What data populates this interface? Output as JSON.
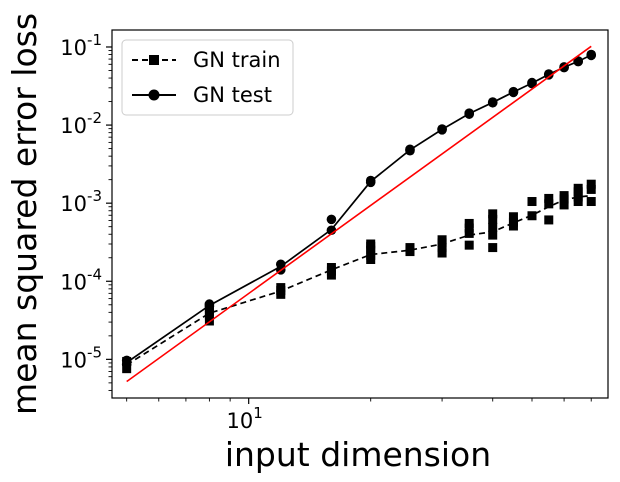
{
  "chart_data": {
    "type": "line",
    "xlabel": "input dimension",
    "ylabel": "mean squared error loss",
    "xscale": "log",
    "yscale": "log",
    "xlim": [
      4.6,
      77
    ],
    "ylim": [
      3.2e-06,
      0.165
    ],
    "grid": false,
    "legend_position": "top-left",
    "x_ticks": [
      {
        "value": 10,
        "label": "10^1"
      }
    ],
    "y_ticks": [
      {
        "value": 1e-05,
        "label": "10^-5"
      },
      {
        "value": 0.0001,
        "label": "10^-4"
      },
      {
        "value": 0.001,
        "label": "10^-3"
      },
      {
        "value": 0.01,
        "label": "10^-2"
      },
      {
        "value": 0.1,
        "label": "10^-1"
      }
    ],
    "series": [
      {
        "name": "GN train",
        "style": "dashed",
        "marker": "square",
        "color": "#000000",
        "x": [
          5,
          8,
          12,
          16,
          20,
          25,
          30,
          35,
          40,
          45,
          50,
          55,
          60,
          65,
          70
        ],
        "y": [
          8.5e-06,
          3.9e-05,
          7.5e-05,
          0.00014,
          0.00022,
          0.00025,
          0.0003,
          0.00039,
          0.00043,
          0.00056,
          0.0007,
          0.0009,
          0.0011,
          0.0012,
          0.00125
        ],
        "replicates": [
          [
            7.6e-06,
            9.4e-06
          ],
          [
            3.1e-05,
            3.7e-05,
            4.1e-05,
            4.6e-05
          ],
          [
            6.8e-05,
            7.6e-05,
            8.3e-05
          ],
          [
            0.00012,
            0.000135,
            0.00015
          ],
          [
            0.00019,
            0.000215,
            0.00025,
            0.00028,
            0.0003
          ],
          [
            0.00024,
            0.000255,
            0.00027
          ],
          [
            0.00023,
            0.00027,
            0.00031,
            0.00034
          ],
          [
            0.00029,
            0.00041,
            0.00048,
            0.00055
          ],
          [
            0.00027,
            0.00039,
            0.00049,
            0.00062,
            0.00073
          ],
          [
            0.00051,
            0.00057,
            0.00067
          ],
          [
            0.00069,
            0.00105
          ],
          [
            0.00061,
            0.00098,
            0.00115
          ],
          [
            0.00095,
            0.00113,
            0.00125
          ],
          [
            0.00105,
            0.0012,
            0.0014,
            0.00155
          ],
          [
            0.00105,
            0.0015,
            0.00175
          ]
        ]
      },
      {
        "name": "GN test",
        "style": "solid",
        "marker": "circle",
        "color": "#000000",
        "x": [
          5,
          8,
          12,
          16,
          20,
          25,
          30,
          35,
          40,
          45,
          50,
          55,
          60,
          65,
          70
        ],
        "y": [
          9.1e-06,
          4.9e-05,
          0.000155,
          0.00046,
          0.0019,
          0.0048,
          0.0088,
          0.014,
          0.0195,
          0.0265,
          0.0345,
          0.0445,
          0.055,
          0.0655,
          0.079
        ],
        "replicates": [
          [
            8.7e-06,
            9.7e-06
          ],
          [
            4.8e-05,
            5.1e-05
          ],
          [
            0.00014,
            0.000165
          ],
          [
            0.00045,
            0.00062
          ],
          [
            0.00185,
            0.00195
          ],
          [
            0.0047,
            0.0049
          ],
          [
            0.0087,
            0.0089
          ],
          [
            0.0138,
            0.0142
          ],
          [
            0.0193,
            0.0197
          ],
          [
            0.0262,
            0.0268
          ],
          [
            0.034,
            0.035
          ],
          [
            0.044,
            0.045
          ],
          [
            0.0545,
            0.0555
          ],
          [
            0.065,
            0.066
          ],
          [
            0.078,
            0.08
          ]
        ]
      },
      {
        "name": "",
        "style": "solid",
        "marker": "none",
        "color": "#ff0000",
        "x": [
          5,
          70
        ],
        "y": [
          5.2e-06,
          0.102
        ]
      }
    ]
  }
}
